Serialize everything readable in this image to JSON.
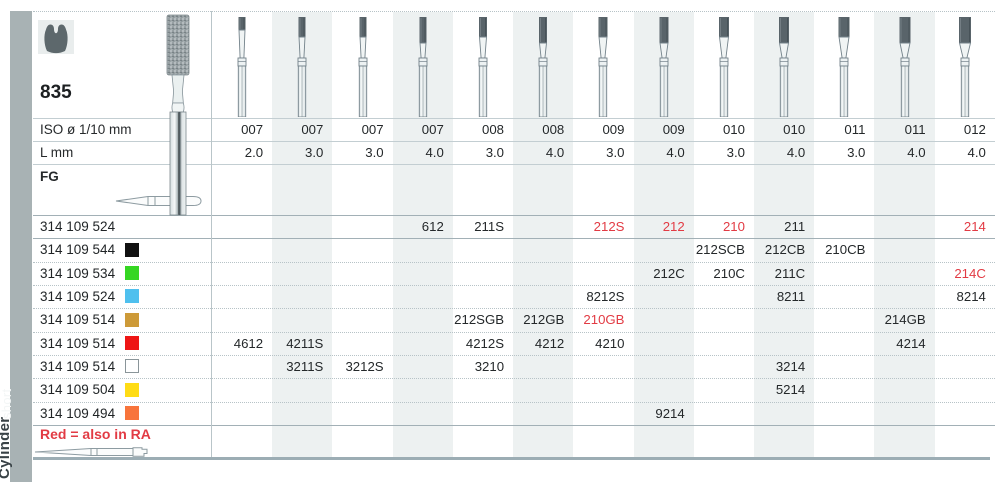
{
  "page": {
    "figure_number": "835",
    "labels": {
      "iso": "ISO ø 1/10 mm",
      "length": "L mm",
      "shank": "FG"
    },
    "note": {
      "text": "Red = also in RA",
      "color": "#e23b44"
    },
    "sidebar": {
      "group": "Cylinder",
      "variant": "short"
    }
  },
  "columns": [
    {
      "iso": "007",
      "l": "2.0"
    },
    {
      "iso": "007",
      "l": "3.0"
    },
    {
      "iso": "007",
      "l": "3.0"
    },
    {
      "iso": "007",
      "l": "4.0"
    },
    {
      "iso": "008",
      "l": "3.0"
    },
    {
      "iso": "008",
      "l": "4.0"
    },
    {
      "iso": "009",
      "l": "3.0"
    },
    {
      "iso": "009",
      "l": "4.0"
    },
    {
      "iso": "010",
      "l": "3.0"
    },
    {
      "iso": "010",
      "l": "4.0"
    },
    {
      "iso": "011",
      "l": "3.0"
    },
    {
      "iso": "011",
      "l": "4.0"
    },
    {
      "iso": "012",
      "l": "4.0"
    }
  ],
  "rows": [
    {
      "code": "314 109 524",
      "swatch": null,
      "cells": [
        {
          "col": 4,
          "text": "612"
        },
        {
          "col": 5,
          "text": "211S"
        },
        {
          "col": 7,
          "text": "212S",
          "red": true
        },
        {
          "col": 8,
          "text": "212",
          "red": true
        },
        {
          "col": 9,
          "text": "210",
          "red": true
        },
        {
          "col": 10,
          "text": "211"
        },
        {
          "col": 13,
          "text": "214",
          "red": true
        }
      ]
    },
    {
      "code": "314 109 544",
      "swatch": {
        "name": "black",
        "hex": "#111111"
      },
      "cells": [
        {
          "col": 9,
          "text": "212SCB"
        },
        {
          "col": 10,
          "text": "212CB"
        },
        {
          "col": 11,
          "text": "210CB"
        }
      ]
    },
    {
      "code": "314 109 534",
      "swatch": {
        "name": "green",
        "hex": "#35d622"
      },
      "cells": [
        {
          "col": 8,
          "text": "212C"
        },
        {
          "col": 9,
          "text": "210C"
        },
        {
          "col": 10,
          "text": "211C"
        },
        {
          "col": 13,
          "text": "214C",
          "red": true
        }
      ]
    },
    {
      "code": "314 109 524",
      "swatch": {
        "name": "light-blue",
        "hex": "#4fc0ee"
      },
      "cells": [
        {
          "col": 7,
          "text": "8212S"
        },
        {
          "col": 10,
          "text": "8211"
        },
        {
          "col": 13,
          "text": "8214"
        }
      ]
    },
    {
      "code": "314 109 514",
      "swatch": {
        "name": "ochre",
        "hex": "#cd9a38"
      },
      "cells": [
        {
          "col": 5,
          "text": "212SGB"
        },
        {
          "col": 6,
          "text": "212GB"
        },
        {
          "col": 7,
          "text": "210GB",
          "red": true
        },
        {
          "col": 12,
          "text": "214GB"
        }
      ]
    },
    {
      "code": "314 109 514",
      "swatch": {
        "name": "red",
        "hex": "#ee1515"
      },
      "cells": [
        {
          "col": 1,
          "text": "4612"
        },
        {
          "col": 2,
          "text": "4211S"
        },
        {
          "col": 5,
          "text": "4212S"
        },
        {
          "col": 6,
          "text": "4212"
        },
        {
          "col": 7,
          "text": "4210"
        },
        {
          "col": 12,
          "text": "4214"
        }
      ]
    },
    {
      "code": "314 109 514",
      "swatch": {
        "name": "white",
        "hex": "#ffffff"
      },
      "cells": [
        {
          "col": 2,
          "text": "3211S"
        },
        {
          "col": 3,
          "text": "3212S"
        },
        {
          "col": 5,
          "text": "3210"
        },
        {
          "col": 10,
          "text": "3214"
        }
      ]
    },
    {
      "code": "314 109 504",
      "swatch": {
        "name": "yellow",
        "hex": "#ffdc15"
      },
      "cells": [
        {
          "col": 10,
          "text": "5214"
        }
      ]
    },
    {
      "code": "314 109 494",
      "swatch": {
        "name": "orange",
        "hex": "#f8743b"
      },
      "cells": [
        {
          "col": 8,
          "text": "9214"
        }
      ]
    }
  ],
  "colors": {
    "accent_red": "#e23b44",
    "column_band": "#edf1f1",
    "sidebar": "#a8b2b4"
  }
}
